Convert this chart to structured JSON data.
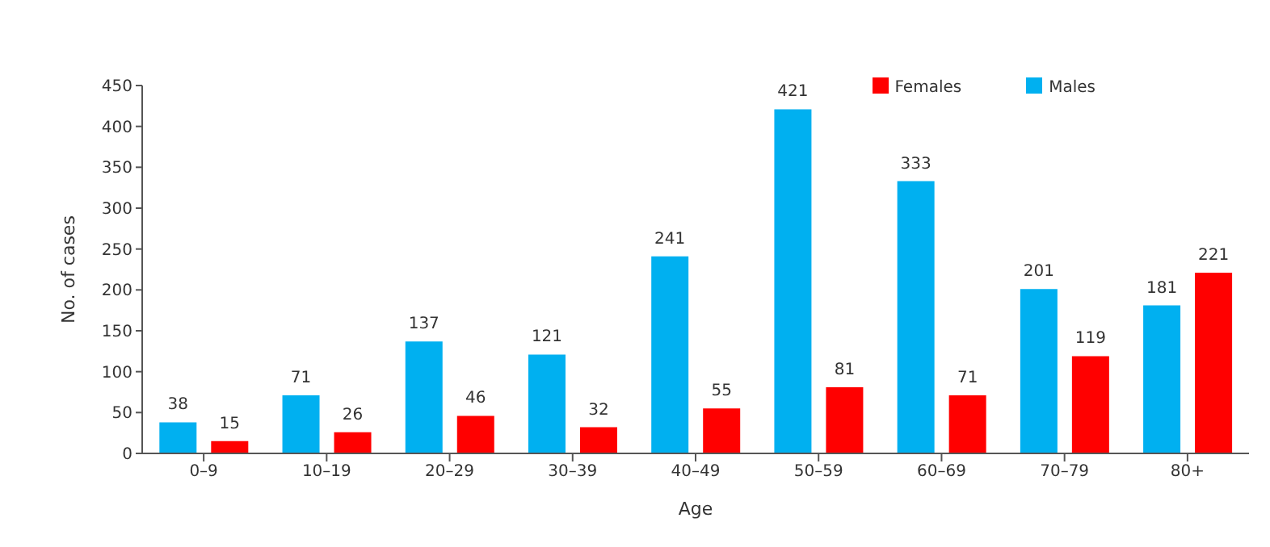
{
  "chart_data": {
    "type": "bar",
    "xlabel": "Age",
    "ylabel": "No. of cases",
    "categories": [
      "0–9",
      "10–19",
      "20–29",
      "30–39",
      "40–49",
      "50–59",
      "60–69",
      "70–79",
      "80+"
    ],
    "series": [
      {
        "name": "Males",
        "color": "#00b0f0",
        "values": [
          38,
          71,
          137,
          121,
          241,
          421,
          333,
          201,
          181
        ]
      },
      {
        "name": "Females",
        "color": "#ff0000",
        "values": [
          15,
          26,
          46,
          32,
          55,
          81,
          71,
          119,
          221
        ]
      }
    ],
    "ylim": [
      0,
      450
    ],
    "yticks": [
      0,
      50,
      100,
      150,
      200,
      250,
      300,
      350,
      400,
      450
    ],
    "data_labels": true,
    "legend": "top right",
    "grid": false
  }
}
